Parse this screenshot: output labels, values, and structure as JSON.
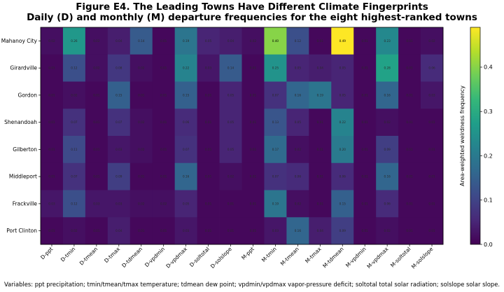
{
  "title": "Figure E4. The Leading Towns Have Different Climate Fingerprints",
  "subtitle": "Daily (D) and monthly (M) departure frequencies for the eight highest-ranked towns",
  "footnote": "Variables: ppt precipitation; tmin/tmean/tmax temperature; tdmean dew point; vpdmin/vpdmax vapor-pressure deficit; soltotal total solar radiation; solslope solar slope.",
  "colors": {
    "colormap": "viridis",
    "stops": [
      "#440154",
      "#482878",
      "#3e4989",
      "#31688e",
      "#26828e",
      "#1f9e89",
      "#35b779",
      "#6ece58",
      "#b5de2b",
      "#fde725"
    ]
  },
  "chart_data": {
    "type": "heatmap",
    "rows": [
      "Mahanoy City",
      "Girardville",
      "Gordon",
      "Shenandoah",
      "Gilberton",
      "Middleport",
      "Frackville",
      "Port Clinton"
    ],
    "columns": [
      "D-ppt",
      "D-tmin",
      "D-tmean",
      "D-tmax",
      "D-tdmean",
      "D-vpdmin",
      "D-vpdmax",
      "D-soltotal",
      "D-solslope",
      "M-ppt",
      "M-tmin",
      "M-tmean",
      "M-tmax",
      "M-tdmean",
      "M-vpdmin",
      "M-vpdmax",
      "M-soltotal",
      "M-solslope"
    ],
    "values": [
      [
        0.02,
        0.26,
        0.02,
        0.04,
        0.14,
        0.01,
        0.19,
        0.05,
        0.04,
        0.02,
        0.4,
        0.12,
        0.01,
        0.49,
        0.01,
        0.23,
        0.01,
        0.02
      ],
      [
        0.01,
        0.12,
        0.02,
        0.08,
        0.02,
        0.01,
        0.22,
        0.03,
        0.14,
        0.01,
        0.25,
        0.05,
        0.04,
        0.05,
        0.01,
        0.28,
        0.01,
        0.06
      ],
      [
        0.01,
        0.02,
        0.01,
        0.15,
        0.01,
        0.01,
        0.15,
        0.01,
        0.05,
        0.01,
        0.07,
        0.16,
        0.19,
        0.05,
        0.01,
        0.16,
        0.01,
        0.03
      ],
      [
        0.01,
        0.07,
        0.01,
        0.07,
        0.02,
        0.01,
        0.06,
        0.01,
        0.05,
        0.01,
        0.13,
        0.05,
        0.01,
        0.22,
        0.01,
        0.02,
        0.01,
        0.01
      ],
      [
        0.01,
        0.11,
        0.01,
        0.03,
        0.02,
        0.01,
        0.07,
        0.01,
        0.05,
        0.01,
        0.17,
        0.02,
        0.01,
        0.2,
        0.01,
        0.09,
        0.01,
        0.01
      ],
      [
        0.01,
        0.07,
        0.01,
        0.09,
        0.01,
        0.01,
        0.16,
        0.01,
        0.02,
        0.01,
        0.07,
        0.06,
        0.01,
        0.06,
        0.01,
        0.16,
        0.01,
        0.01
      ],
      [
        0.03,
        0.12,
        0.03,
        0.03,
        0.02,
        0.02,
        0.05,
        0.01,
        0.01,
        0.01,
        0.19,
        0.02,
        0.01,
        0.15,
        0.01,
        0.06,
        0.01,
        0.01
      ],
      [
        0.01,
        0.02,
        0.01,
        0.04,
        0.01,
        0.01,
        0.03,
        0.01,
        0.01,
        0.01,
        0.03,
        0.16,
        0.04,
        0.09,
        0.01,
        0.02,
        0.01,
        0.01
      ]
    ],
    "vmin": 0.0,
    "vmax": 0.49,
    "colorbar": {
      "label": "Area-weighted weirdness frequency",
      "ticks": [
        0.0,
        0.1,
        0.2,
        0.3,
        0.4
      ],
      "tick_labels": [
        "0.0",
        "0.1",
        "0.2",
        "0.3",
        "0.4"
      ]
    },
    "cell_labels": "two-decimal values shown in each cell",
    "legend": "colorbar at right"
  }
}
